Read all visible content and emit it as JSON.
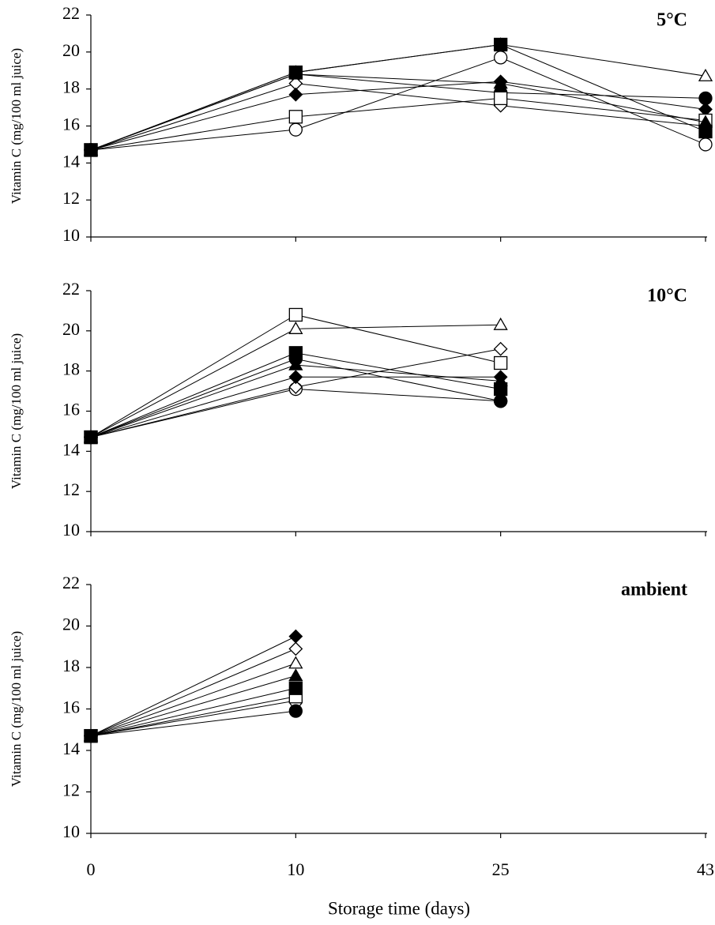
{
  "x_axis": {
    "categories": [
      "0",
      "10",
      "25",
      "43"
    ],
    "label": "Storage time (days)"
  },
  "chart_data": [
    {
      "type": "line",
      "title": "5°C",
      "ylabel": "Vitamin C (mg/100 ml juice)",
      "ylim": [
        10,
        22
      ],
      "yticks": [
        10,
        12,
        14,
        16,
        18,
        20,
        22
      ],
      "series": [
        {
          "marker": "circle",
          "filled": false,
          "color": "#000000",
          "values": [
            14.7,
            15.8,
            19.7,
            15.0
          ]
        },
        {
          "marker": "circle",
          "filled": true,
          "color": "#000000",
          "values": [
            14.7,
            18.8,
            17.8,
            17.5
          ]
        },
        {
          "marker": "diamond",
          "filled": false,
          "color": "#000000",
          "values": [
            14.7,
            18.3,
            17.1,
            16.0
          ]
        },
        {
          "marker": "diamond",
          "filled": true,
          "color": "#000000",
          "values": [
            14.7,
            17.7,
            18.4,
            16.9
          ]
        },
        {
          "marker": "square",
          "filled": false,
          "color": "#000000",
          "values": [
            14.7,
            16.5,
            17.5,
            16.3
          ]
        },
        {
          "marker": "triangle",
          "filled": false,
          "color": "#000000",
          "values": [
            14.7,
            18.9,
            20.4,
            18.7
          ]
        },
        {
          "marker": "triangle",
          "filled": true,
          "color": "#000000",
          "values": [
            14.7,
            18.8,
            18.3,
            16.2
          ]
        },
        {
          "marker": "square",
          "filled": true,
          "color": "#000000",
          "values": [
            14.7,
            18.9,
            20.4,
            15.7
          ]
        }
      ]
    },
    {
      "type": "line",
      "title": "10°C",
      "ylabel": "Vitamin C (mg/100 ml juice)",
      "ylim": [
        10,
        22
      ],
      "yticks": [
        10,
        12,
        14,
        16,
        18,
        20,
        22
      ],
      "series": [
        {
          "marker": "circle",
          "filled": false,
          "color": "#000000",
          "values": [
            14.7,
            17.1,
            16.5,
            null
          ]
        },
        {
          "marker": "circle",
          "filled": true,
          "color": "#000000",
          "values": [
            14.7,
            18.6,
            16.5,
            null
          ]
        },
        {
          "marker": "diamond",
          "filled": false,
          "color": "#000000",
          "values": [
            14.7,
            17.2,
            19.1,
            null
          ]
        },
        {
          "marker": "diamond",
          "filled": true,
          "color": "#000000",
          "values": [
            14.7,
            17.7,
            17.7,
            null
          ]
        },
        {
          "marker": "square",
          "filled": false,
          "color": "#000000",
          "values": [
            14.7,
            20.8,
            18.4,
            null
          ]
        },
        {
          "marker": "triangle",
          "filled": false,
          "color": "#000000",
          "values": [
            14.7,
            20.1,
            20.3,
            null
          ]
        },
        {
          "marker": "triangle",
          "filled": true,
          "color": "#000000",
          "values": [
            14.7,
            18.3,
            17.5,
            null
          ]
        },
        {
          "marker": "square",
          "filled": true,
          "color": "#000000",
          "values": [
            14.7,
            18.9,
            17.1,
            null
          ]
        }
      ]
    },
    {
      "type": "line",
      "title": "ambient",
      "ylabel": "Vitamin C (mg/100 ml juice)",
      "ylim": [
        10,
        22
      ],
      "yticks": [
        10,
        12,
        14,
        16,
        18,
        20,
        22
      ],
      "series": [
        {
          "marker": "circle",
          "filled": false,
          "color": "#000000",
          "values": [
            14.7,
            16.4,
            null,
            null
          ]
        },
        {
          "marker": "circle",
          "filled": true,
          "color": "#000000",
          "values": [
            14.7,
            15.9,
            null,
            null
          ]
        },
        {
          "marker": "diamond",
          "filled": false,
          "color": "#000000",
          "values": [
            14.7,
            18.9,
            null,
            null
          ]
        },
        {
          "marker": "diamond",
          "filled": true,
          "color": "#000000",
          "values": [
            14.7,
            19.5,
            null,
            null
          ]
        },
        {
          "marker": "square",
          "filled": false,
          "color": "#000000",
          "values": [
            14.7,
            16.6,
            null,
            null
          ]
        },
        {
          "marker": "triangle",
          "filled": false,
          "color": "#000000",
          "values": [
            14.7,
            18.2,
            null,
            null
          ]
        },
        {
          "marker": "triangle",
          "filled": true,
          "color": "#000000",
          "values": [
            14.7,
            17.6,
            null,
            null
          ]
        },
        {
          "marker": "square",
          "filled": true,
          "color": "#000000",
          "values": [
            14.7,
            17.0,
            null,
            null
          ]
        }
      ]
    }
  ]
}
